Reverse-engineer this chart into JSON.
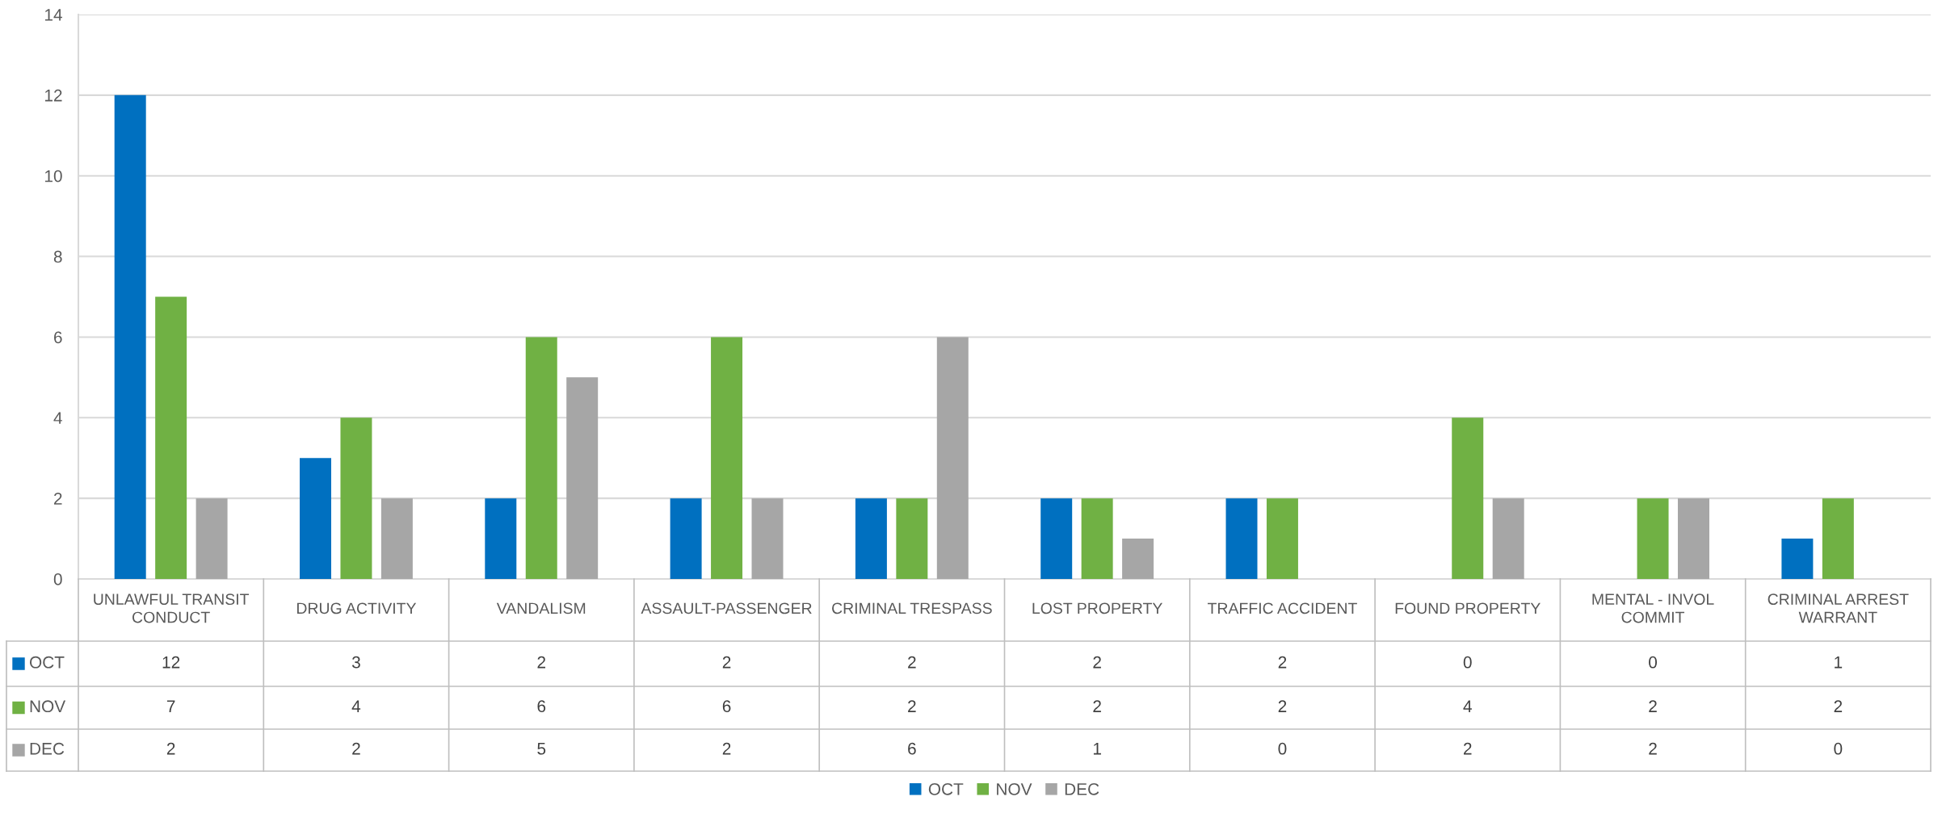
{
  "chart_data": {
    "type": "bar",
    "categories": [
      "UNLAWFUL TRANSIT CONDUCT",
      "DRUG ACTIVITY",
      "VANDALISM",
      "ASSAULT-PASSENGER",
      "CRIMINAL TRESPASS",
      "LOST PROPERTY",
      "TRAFFIC ACCIDENT",
      "FOUND PROPERTY",
      "MENTAL - INVOL COMMIT",
      "CRIMINAL ARREST WARRANT"
    ],
    "series": [
      {
        "name": "OCT",
        "color": "#0070c0",
        "values": [
          12,
          3,
          2,
          2,
          2,
          2,
          2,
          0,
          0,
          1
        ]
      },
      {
        "name": "NOV",
        "color": "#70b144",
        "values": [
          7,
          4,
          6,
          6,
          2,
          2,
          2,
          4,
          2,
          2
        ]
      },
      {
        "name": "DEC",
        "color": "#a6a6a6",
        "values": [
          2,
          2,
          5,
          2,
          6,
          1,
          0,
          2,
          2,
          0
        ]
      }
    ],
    "ylim": [
      0,
      14
    ],
    "yticks": [
      0,
      2,
      4,
      6,
      8,
      10,
      12,
      14
    ],
    "grid": "y",
    "legend": "bottom",
    "data_labels": true
  }
}
